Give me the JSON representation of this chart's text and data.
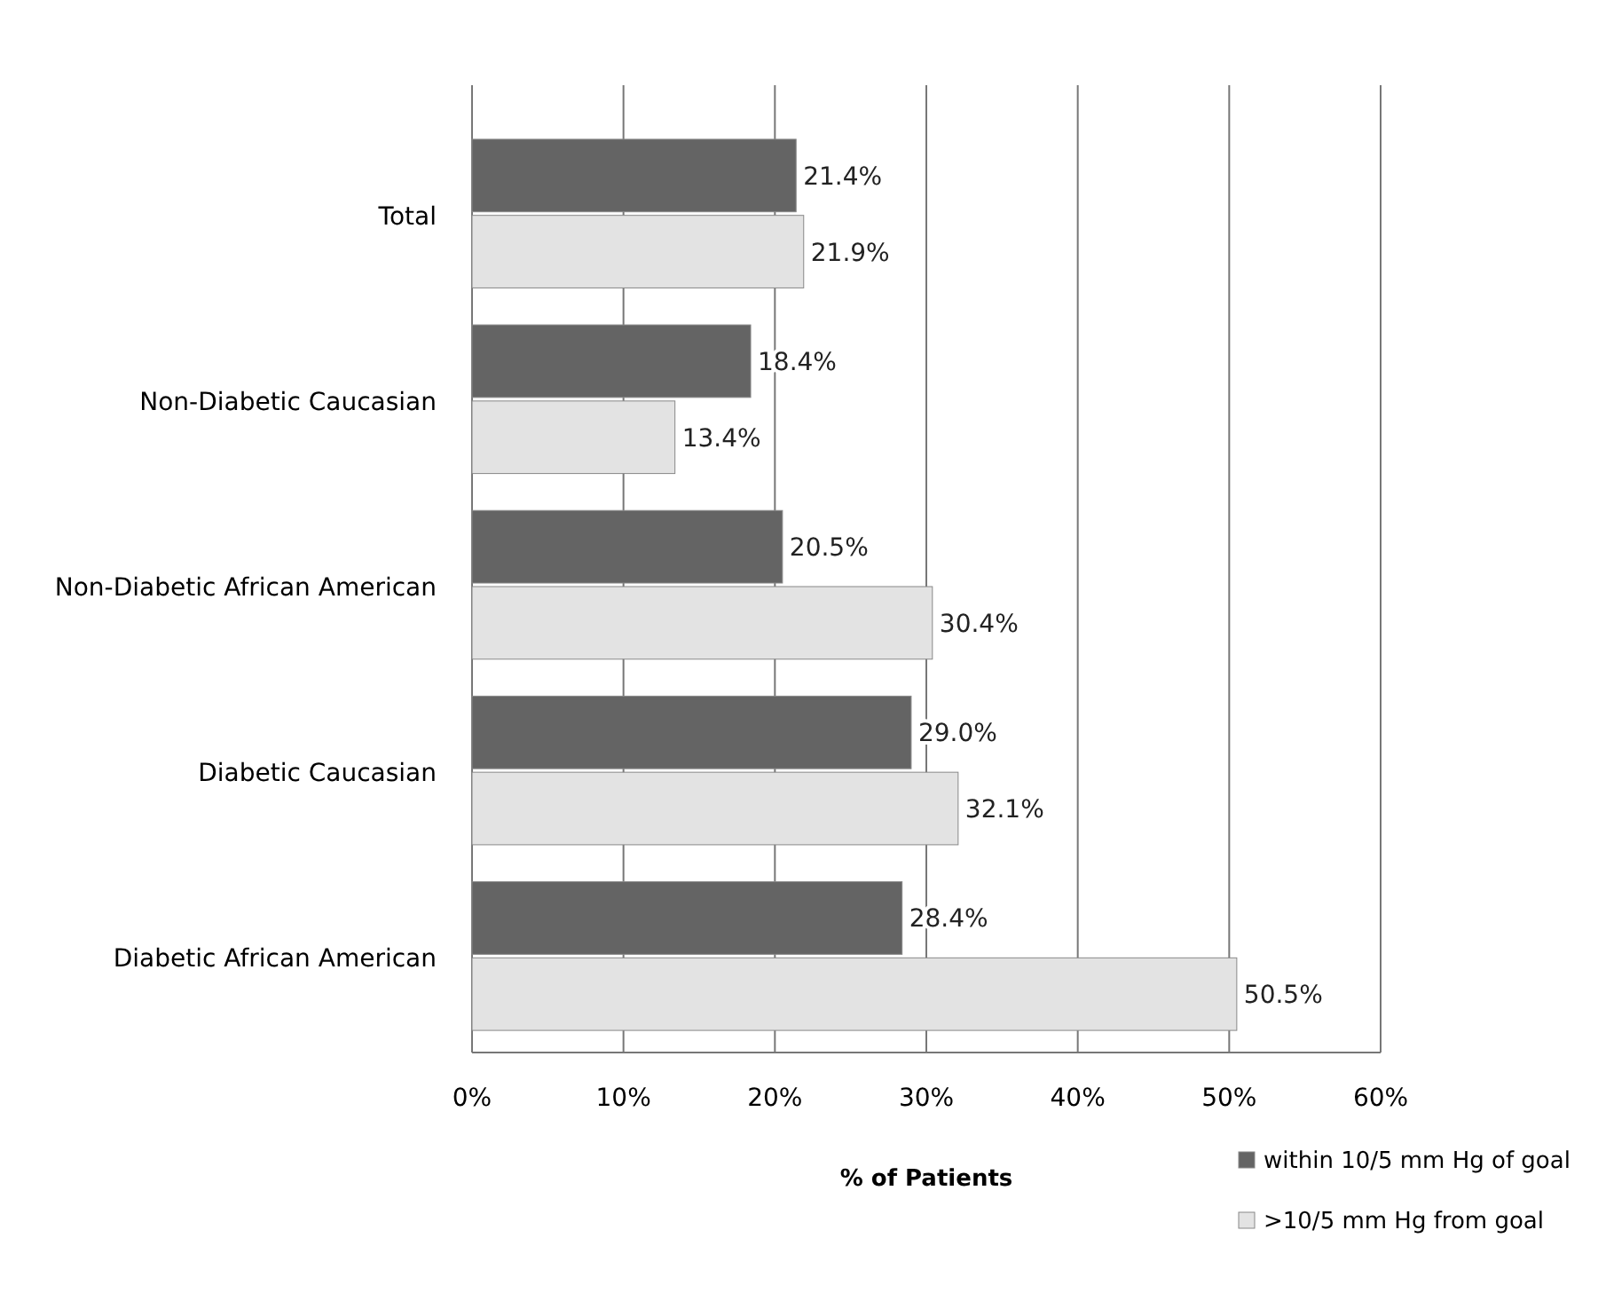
{
  "chart_data": {
    "type": "bar",
    "orientation": "horizontal",
    "xlabel": "% of Patients",
    "categories": [
      "Total",
      "Non-Diabetic Caucasian",
      "Non-Diabetic African American",
      "Diabetic Caucasian",
      "Diabetic African American"
    ],
    "series": [
      {
        "name": "within 10/5 mm Hg of goal",
        "color": "#646464",
        "values": [
          21.4,
          18.4,
          20.5,
          29.0,
          28.4
        ],
        "value_labels": [
          "21.4%",
          "18.4%",
          "20.5%",
          "29.0%",
          "28.4%"
        ]
      },
      {
        "name": ">10/5 mm Hg from goal",
        "color": "#e3e3e3",
        "values": [
          21.9,
          13.4,
          30.4,
          32.1,
          50.5
        ],
        "value_labels": [
          "21.9%",
          "13.4%",
          "30.4%",
          "32.1%",
          "50.5%"
        ]
      }
    ],
    "xlim": [
      0,
      60
    ],
    "xticks": [
      {
        "value": 0,
        "label": "0%"
      },
      {
        "value": 10,
        "label": "10%"
      },
      {
        "value": 20,
        "label": "20%"
      },
      {
        "value": 30,
        "label": "30%"
      },
      {
        "value": 40,
        "label": "40%"
      },
      {
        "value": 50,
        "label": "50%"
      },
      {
        "value": 60,
        "label": "60%"
      }
    ],
    "grid": "x",
    "legend": "bottom right"
  }
}
